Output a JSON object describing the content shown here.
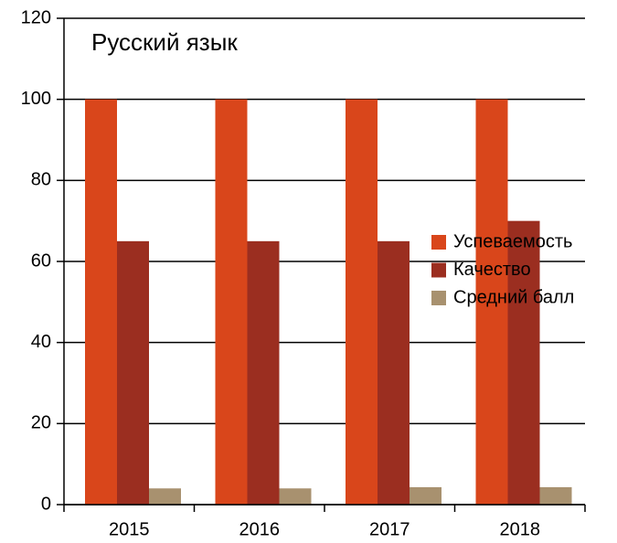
{
  "chart_data": {
    "type": "bar",
    "title": "Русский язык",
    "categories": [
      "2015",
      "2016",
      "2017",
      "2018"
    ],
    "series": [
      {
        "name": "Успеваемость",
        "color": "#d9461b",
        "values": [
          100,
          100,
          100,
          100
        ]
      },
      {
        "name": "Качество",
        "color": "#9b2e20",
        "values": [
          65,
          65,
          65,
          70
        ]
      },
      {
        "name": "Средний балл",
        "color": "#a8916f",
        "values": [
          4.0,
          4.0,
          4.3,
          4.3
        ]
      }
    ],
    "ylim": [
      0,
      120
    ],
    "yticks": [
      0,
      20,
      40,
      60,
      80,
      100,
      120
    ],
    "grid": true,
    "legend": "right"
  }
}
